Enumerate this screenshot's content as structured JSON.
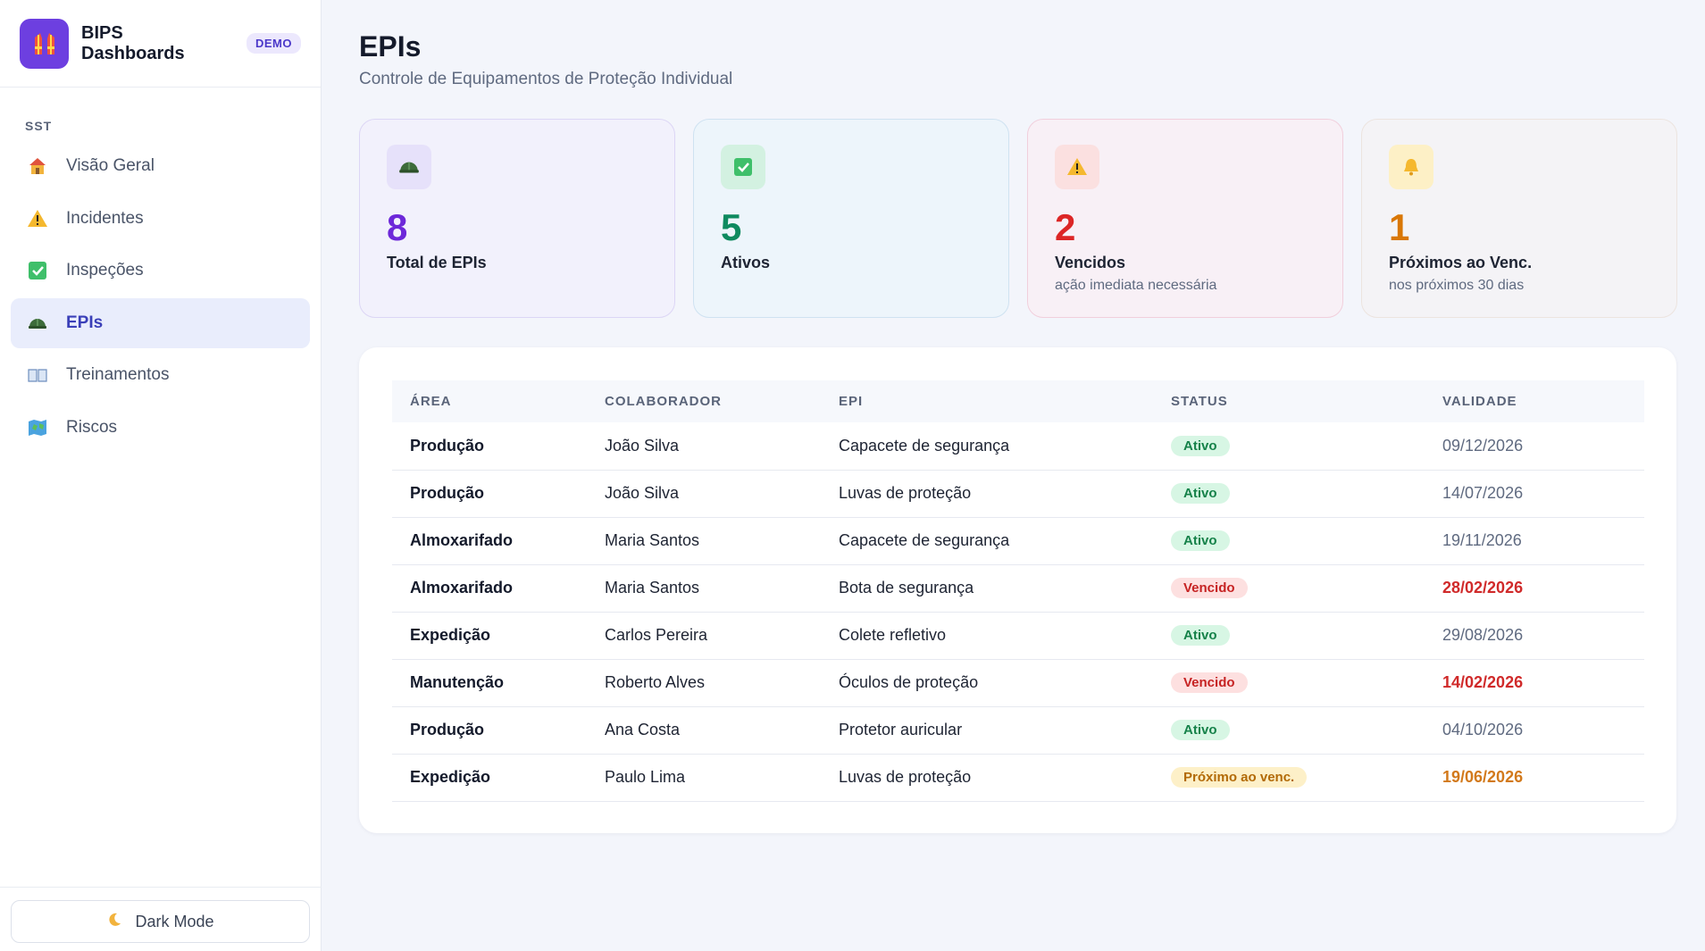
{
  "brand": {
    "name": "BIPS Dashboards",
    "badge": "DEMO"
  },
  "sidebar": {
    "section": "SST",
    "items": [
      {
        "label": "Visão Geral",
        "icon": "house-icon",
        "active": false
      },
      {
        "label": "Incidentes",
        "icon": "warning-icon",
        "active": false
      },
      {
        "label": "Inspeções",
        "icon": "check-icon",
        "active": false
      },
      {
        "label": "EPIs",
        "icon": "helmet-icon",
        "active": true
      },
      {
        "label": "Treinamentos",
        "icon": "book-icon",
        "active": false
      },
      {
        "label": "Riscos",
        "icon": "map-icon",
        "active": false
      }
    ],
    "dark_mode_label": "Dark Mode"
  },
  "header": {
    "title": "EPIs",
    "subtitle": "Controle de Equipamentos de Proteção Individual"
  },
  "cards": [
    {
      "value": "8",
      "label": "Total de EPIs",
      "sub": "",
      "icon": "helmet-icon",
      "color": "#6d28d9"
    },
    {
      "value": "5",
      "label": "Ativos",
      "sub": "",
      "icon": "check-icon",
      "color": "#0e8a5f"
    },
    {
      "value": "2",
      "label": "Vencidos",
      "sub": "ação imediata necessária",
      "icon": "warning-icon",
      "color": "#dc2626"
    },
    {
      "value": "1",
      "label": "Próximos ao Venc.",
      "sub": "nos próximos 30 dias",
      "icon": "bell-icon",
      "color": "#d97706"
    }
  ],
  "table": {
    "columns": [
      "ÁREA",
      "COLABORADOR",
      "EPI",
      "STATUS",
      "VALIDADE"
    ],
    "rows": [
      {
        "area": "Produção",
        "colaborador": "João Silva",
        "epi": "Capacete de segurança",
        "status": "Ativo",
        "validade": "09/12/2026"
      },
      {
        "area": "Produção",
        "colaborador": "João Silva",
        "epi": "Luvas de proteção",
        "status": "Ativo",
        "validade": "14/07/2026"
      },
      {
        "area": "Almoxarifado",
        "colaborador": "Maria Santos",
        "epi": "Capacete de segurança",
        "status": "Ativo",
        "validade": "19/11/2026"
      },
      {
        "area": "Almoxarifado",
        "colaborador": "Maria Santos",
        "epi": "Bota de segurança",
        "status": "Vencido",
        "validade": "28/02/2026"
      },
      {
        "area": "Expedição",
        "colaborador": "Carlos Pereira",
        "epi": "Colete refletivo",
        "status": "Ativo",
        "validade": "29/08/2026"
      },
      {
        "area": "Manutenção",
        "colaborador": "Roberto Alves",
        "epi": "Óculos de proteção",
        "status": "Vencido",
        "validade": "14/02/2026"
      },
      {
        "area": "Produção",
        "colaborador": "Ana Costa",
        "epi": "Protetor auricular",
        "status": "Ativo",
        "validade": "04/10/2026"
      },
      {
        "area": "Expedição",
        "colaborador": "Paulo Lima",
        "epi": "Luvas de proteção",
        "status": "Próximo ao venc.",
        "validade": "19/06/2026"
      }
    ]
  }
}
